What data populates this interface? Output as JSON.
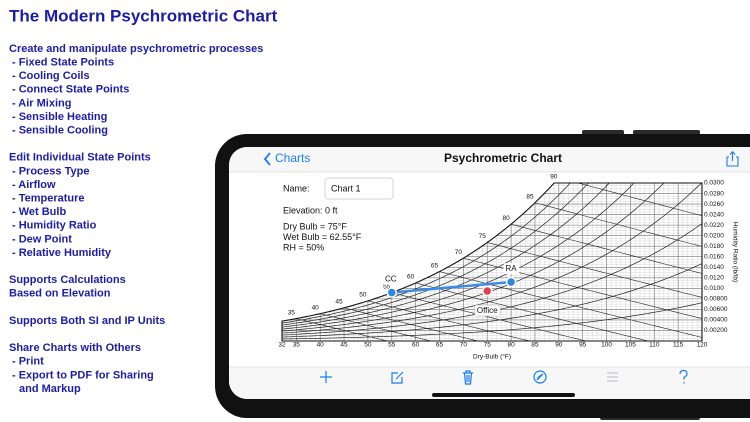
{
  "marketing": {
    "title": "The Modern Psychrometric Chart",
    "sections": [
      {
        "heading": [
          "Create and manipulate psychrometric processes"
        ],
        "items": [
          [
            "- Fixed State Points"
          ],
          [
            "- Cooling Coils"
          ],
          [
            "- Connect State Points"
          ],
          [
            "- Air Mixing"
          ],
          [
            "- Sensible Heating"
          ],
          [
            "- Sensible Cooling"
          ]
        ]
      },
      {
        "heading": [
          "Edit Individual State Points"
        ],
        "items": [
          [
            "- Process Type"
          ],
          [
            "- Airflow"
          ],
          [
            "- Temperature"
          ],
          [
            "- Wet Bulb"
          ],
          [
            "- Humidity Ratio"
          ],
          [
            "- Dew Point"
          ],
          [
            "- Relative Humidity"
          ]
        ]
      },
      {
        "heading": [
          "Supports Calculations",
          "Based on Elevation"
        ],
        "items": []
      },
      {
        "heading": [
          "Supports Both SI and IP Units"
        ],
        "items": []
      },
      {
        "heading": [
          "Share Charts with Others"
        ],
        "items": [
          [
            "- Print"
          ],
          [
            "- Export to PDF for Sharing",
            "and Markup"
          ]
        ]
      }
    ]
  },
  "app": {
    "nav": {
      "back": "Charts",
      "title": "Psychrometric Chart"
    },
    "form": {
      "name_label": "Name:",
      "name_value": "Chart  1",
      "elevation": "Elevation:   0 ft",
      "state": [
        "Dry Bulb = 75°F",
        "Wet Bulb = 62.55°F",
        "RH = 50%"
      ]
    },
    "chart": {
      "xlabel": "Dry-Bulb (°F)",
      "ylabel": "Humidity Ratio (lb/lb)",
      "xlim": [
        32,
        120
      ],
      "xticks": [
        32,
        35,
        40,
        45,
        50,
        55,
        60,
        65,
        70,
        75,
        80,
        85,
        90,
        95,
        100,
        105,
        110,
        115,
        120
      ],
      "ylim": [
        0,
        0.03
      ],
      "yticks": [
        {
          "value": 0.002,
          "label": "0.00200"
        },
        {
          "value": 0.004,
          "label": "0.00400"
        },
        {
          "value": 0.006,
          "label": "0.00600"
        },
        {
          "value": 0.008,
          "label": "0.00800"
        },
        {
          "value": 0.01,
          "label": "0.0100"
        },
        {
          "value": 0.012,
          "label": "0.0120"
        },
        {
          "value": 0.014,
          "label": "0.0140"
        },
        {
          "value": 0.016,
          "label": "0.0160"
        },
        {
          "value": 0.018,
          "label": "0.0180"
        },
        {
          "value": 0.02,
          "label": "0.0200"
        },
        {
          "value": 0.022,
          "label": "0.0220"
        },
        {
          "value": 0.024,
          "label": "0.0240"
        },
        {
          "value": 0.026,
          "label": "0.0260"
        },
        {
          "value": 0.028,
          "label": "0.0280"
        },
        {
          "value": 0.03,
          "label": "0.0300"
        }
      ],
      "wet_bulb_labels": [
        35,
        40,
        45,
        50,
        55,
        60,
        65,
        70,
        75,
        80,
        85,
        90
      ],
      "points": [
        {
          "name": "CC",
          "dry_bulb": 55,
          "humidity_ratio": 0.0092,
          "color": "#2d86e0"
        },
        {
          "name": "RA",
          "dry_bulb": 80,
          "humidity_ratio": 0.0112,
          "color": "#2d86e0"
        },
        {
          "name": "Office",
          "dry_bulb": 75,
          "humidity_ratio": 0.0095,
          "color": "#e0404a"
        }
      ],
      "process_color": "#3b8be6"
    }
  }
}
